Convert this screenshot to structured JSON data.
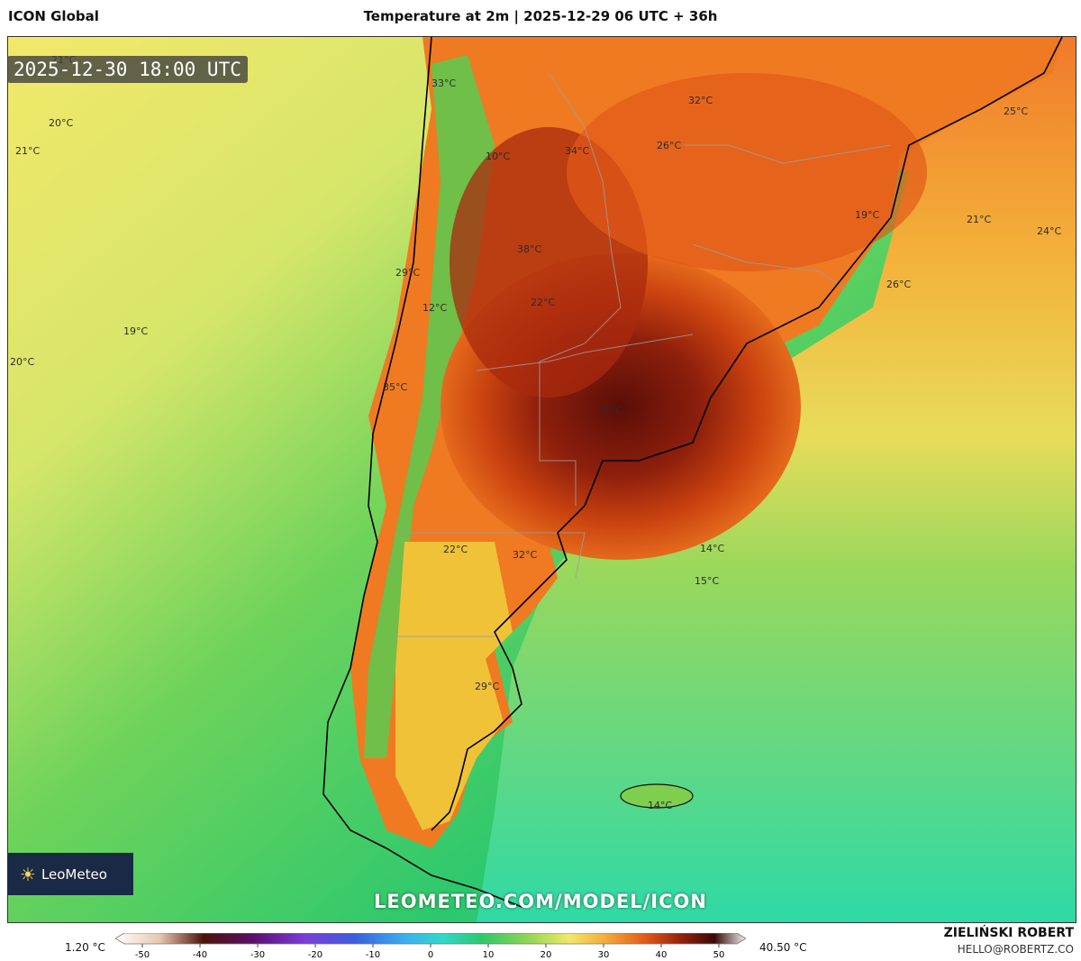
{
  "header": {
    "model": "ICON Global",
    "title": "Temperature at 2m | 2025-12-29 06 UTC + 36h"
  },
  "timestamp": "2025-12-30 18:00 UTC",
  "watermark": "LEOMETEO.COM/MODEL/ICON",
  "logo_text": "LeoMeteo",
  "labels": [
    {
      "text": "21°C"
    },
    {
      "text": "20°C"
    },
    {
      "text": "21°C"
    },
    {
      "text": "19°C"
    },
    {
      "text": "20°C"
    },
    {
      "text": "33°C"
    },
    {
      "text": "10°C"
    },
    {
      "text": "29°C"
    },
    {
      "text": "12°C"
    },
    {
      "text": "35°C"
    },
    {
      "text": "38°C"
    },
    {
      "text": "22°C"
    },
    {
      "text": "34°C"
    },
    {
      "text": "32°C"
    },
    {
      "text": "26°C"
    },
    {
      "text": "25°C"
    },
    {
      "text": "19°C"
    },
    {
      "text": "21°C"
    },
    {
      "text": "24°C"
    },
    {
      "text": "26°C"
    },
    {
      "text": "40°C"
    },
    {
      "text": "22°C"
    },
    {
      "text": "32°C"
    },
    {
      "text": "14°C"
    },
    {
      "text": "15°C"
    },
    {
      "text": "29°C"
    },
    {
      "text": "14°C"
    }
  ],
  "colorbar": {
    "min_label": "1.20 °C",
    "max_label": "40.50 °C",
    "ticks": [
      "-50",
      "-40",
      "-30",
      "-20",
      "-10",
      "0",
      "10",
      "20",
      "30",
      "40",
      "50"
    ]
  },
  "author": "ZIELIŃSKI ROBERT",
  "email": "HELLO@ROBERTZ.CO"
}
